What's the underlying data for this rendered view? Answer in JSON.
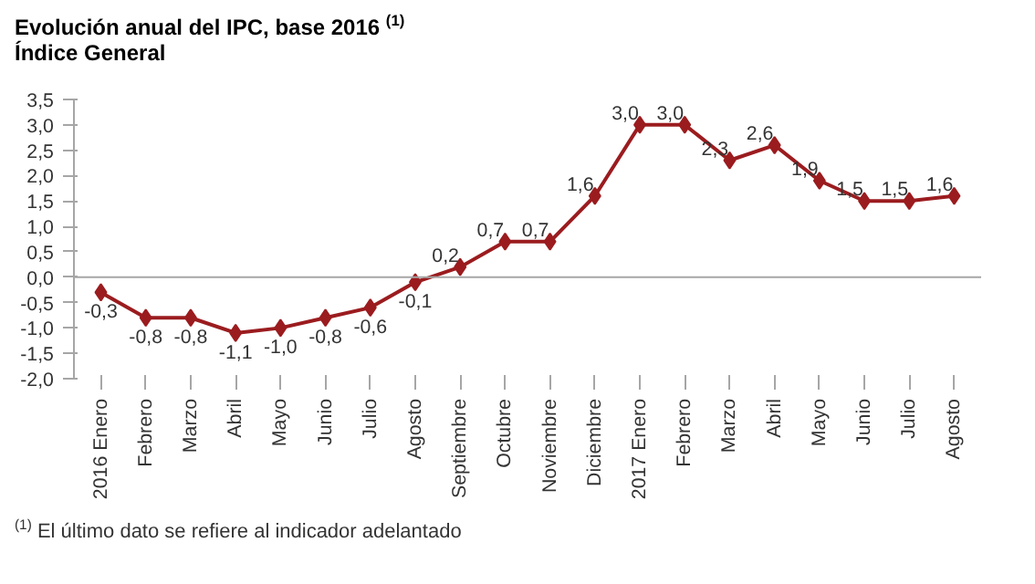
{
  "chart_data": {
    "type": "line",
    "title": "Evolución anual del IPC, base 2016 $^{(1)}$",
    "subtitle": "Índice General",
    "categories": [
      "2016 Enero",
      "Febrero",
      "Marzo",
      "Abril",
      "Mayo",
      "Junio",
      "Julio",
      "Agosto",
      "Septiembre",
      "Octubre",
      "Noviembre",
      "Diciembre",
      "2017 Enero",
      "Febrero",
      "Marzo",
      "Abril",
      "Mayo",
      "Junio",
      "Julio",
      "Agosto"
    ],
    "series": [
      {
        "color": "#9b1c1f",
        "values": [
          -0.3,
          -0.8,
          -0.8,
          -1.1,
          -1.0,
          -0.8,
          -0.6,
          -0.1,
          0.2,
          0.7,
          0.7,
          1.6,
          3.0,
          3.0,
          2.3,
          2.6,
          1.9,
          1.5,
          1.5,
          1.6
        ],
        "value_labels": [
          "-0,3",
          "-0,8",
          "-0,8",
          "-1,1",
          "-1,0",
          "-0,8",
          "-0,6",
          "-0,1",
          "0,2",
          "0,7",
          "0,7",
          "1,6",
          "3,0",
          "3,0",
          "2,3",
          "2,6",
          "1,9",
          "1,5",
          "1,5",
          "1,6"
        ]
      }
    ],
    "ylim": [
      -2.0,
      3.5
    ],
    "yticks": [
      {
        "value": -2.0,
        "label": "-2,0"
      },
      {
        "value": -1.5,
        "label": "-1,5"
      },
      {
        "value": -1.0,
        "label": "-1,0"
      },
      {
        "value": -0.5,
        "label": "-0,5"
      },
      {
        "value": 0.0,
        "label": "0,0"
      },
      {
        "value": 0.5,
        "label": "0,5"
      },
      {
        "value": 1.0,
        "label": "1,0"
      },
      {
        "value": 1.5,
        "label": "1,5"
      },
      {
        "value": 2.0,
        "label": "2,0"
      },
      {
        "value": 2.5,
        "label": "2,5"
      },
      {
        "value": 3.0,
        "label": "3,0"
      },
      {
        "value": 3.5,
        "label": "3,5"
      }
    ],
    "ref_lines": [
      {
        "axis": "y",
        "value": 0.0,
        "color": "#a6a6a6"
      }
    ],
    "marker": "diamond",
    "line_style": "solid",
    "grid": false,
    "annotations": [
      "$^{(1)}$ El último dato se refiere al indicador adelantado"
    ]
  }
}
